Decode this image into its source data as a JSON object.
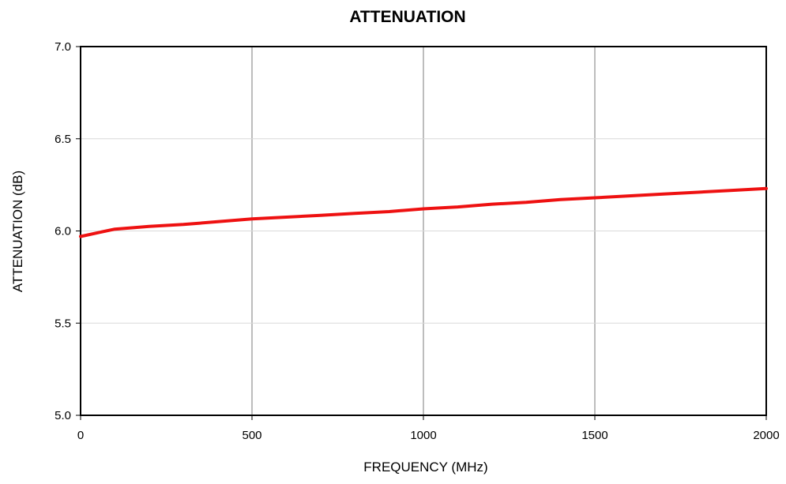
{
  "chart_data": {
    "type": "line",
    "title": "ATTENUATION",
    "xlabel": "FREQUENCY (MHz)",
    "ylabel": "ATTENUATION (dB)",
    "xlim": [
      0,
      2000
    ],
    "ylim": [
      5.0,
      7.0
    ],
    "x_ticks": [
      "0",
      "500",
      "1000",
      "1500",
      "2000"
    ],
    "y_ticks": [
      "5.0",
      "5.5",
      "6.0",
      "6.5",
      "7.0"
    ],
    "grid": {
      "x": true,
      "y": true
    },
    "legend": "none",
    "series": [
      {
        "color": "#ee1111",
        "x": [
          0,
          50,
          100,
          200,
          300,
          400,
          500,
          600,
          700,
          800,
          900,
          1000,
          1100,
          1200,
          1300,
          1400,
          1500,
          1600,
          1700,
          1800,
          1900,
          2000
        ],
        "y": [
          5.97,
          5.99,
          6.01,
          6.025,
          6.035,
          6.05,
          6.065,
          6.075,
          6.085,
          6.095,
          6.105,
          6.12,
          6.13,
          6.145,
          6.155,
          6.17,
          6.18,
          6.19,
          6.2,
          6.21,
          6.22,
          6.23
        ]
      }
    ]
  }
}
